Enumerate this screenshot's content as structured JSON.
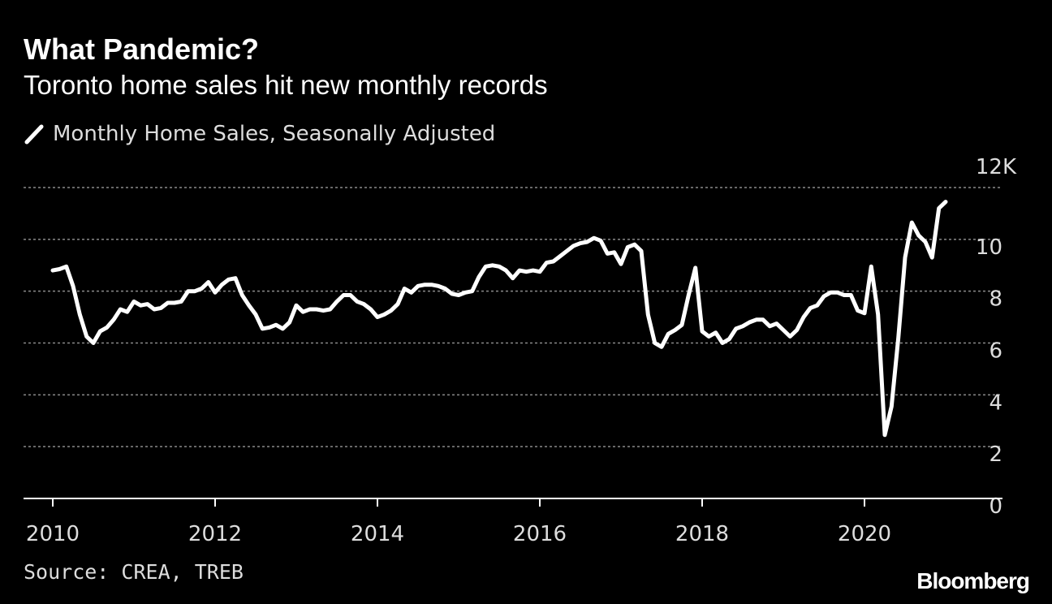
{
  "header": {
    "title": "What Pandemic?",
    "subtitle": "Toronto home sales hit new monthly records"
  },
  "legend": {
    "label": "Monthly Home Sales, Seasonally Adjusted",
    "icon": "line-swatch-icon",
    "placement": "top-left"
  },
  "footer": {
    "source": "Source: CREA, TREB",
    "logo": "Bloomberg"
  },
  "colors": {
    "background": "#000000",
    "line": "#ffffff",
    "grid": "#8a8a8a",
    "text": "#dddddd"
  },
  "chart_data": {
    "type": "line",
    "title": "What Pandemic?",
    "subtitle": "Toronto home sales hit new monthly records",
    "xlabel": "",
    "ylabel": "",
    "grid": true,
    "legend_placement": "top-left",
    "xlim": [
      2009.75,
      2021.4
    ],
    "ylim": [
      0,
      12
    ],
    "y_ticks": [
      0,
      2,
      4,
      6,
      8,
      10,
      12
    ],
    "y_tick_labels": [
      "0",
      "2",
      "4",
      "6",
      "8",
      "10",
      "12K"
    ],
    "x_ticks": [
      2010,
      2012,
      2014,
      2016,
      2018,
      2020
    ],
    "x_tick_labels": [
      "2010",
      "2012",
      "2014",
      "2016",
      "2018",
      "2020"
    ],
    "series": [
      {
        "name": "Monthly Home Sales, Seasonally Adjusted",
        "x": [
          2010.0,
          2010.083,
          2010.167,
          2010.25,
          2010.333,
          2010.417,
          2010.5,
          2010.583,
          2010.667,
          2010.75,
          2010.833,
          2010.917,
          2011.0,
          2011.083,
          2011.167,
          2011.25,
          2011.333,
          2011.417,
          2011.5,
          2011.583,
          2011.667,
          2011.75,
          2011.833,
          2011.917,
          2012.0,
          2012.083,
          2012.167,
          2012.25,
          2012.333,
          2012.417,
          2012.5,
          2012.583,
          2012.667,
          2012.75,
          2012.833,
          2012.917,
          2013.0,
          2013.083,
          2013.167,
          2013.25,
          2013.333,
          2013.417,
          2013.5,
          2013.583,
          2013.667,
          2013.75,
          2013.833,
          2013.917,
          2014.0,
          2014.083,
          2014.167,
          2014.25,
          2014.333,
          2014.417,
          2014.5,
          2014.583,
          2014.667,
          2014.75,
          2014.833,
          2014.917,
          2015.0,
          2015.083,
          2015.167,
          2015.25,
          2015.333,
          2015.417,
          2015.5,
          2015.583,
          2015.667,
          2015.75,
          2015.833,
          2015.917,
          2016.0,
          2016.083,
          2016.167,
          2016.25,
          2016.333,
          2016.417,
          2016.5,
          2016.583,
          2016.667,
          2016.75,
          2016.833,
          2016.917,
          2017.0,
          2017.083,
          2017.167,
          2017.25,
          2017.333,
          2017.417,
          2017.5,
          2017.583,
          2017.667,
          2017.75,
          2017.833,
          2017.917,
          2018.0,
          2018.083,
          2018.167,
          2018.25,
          2018.333,
          2018.417,
          2018.5,
          2018.583,
          2018.667,
          2018.75,
          2018.833,
          2018.917,
          2019.0,
          2019.083,
          2019.167,
          2019.25,
          2019.333,
          2019.417,
          2019.5,
          2019.583,
          2019.667,
          2019.75,
          2019.833,
          2019.917,
          2020.0,
          2020.083,
          2020.167,
          2020.25,
          2020.333,
          2020.417,
          2020.5,
          2020.583,
          2020.667,
          2020.75,
          2020.833,
          2020.917,
          2021.0
        ],
        "values": [
          8.8,
          8.85,
          8.95,
          8.2,
          7.1,
          6.25,
          6.0,
          6.45,
          6.6,
          6.9,
          7.3,
          7.2,
          7.6,
          7.45,
          7.5,
          7.3,
          7.35,
          7.55,
          7.55,
          7.6,
          8.0,
          8.0,
          8.1,
          8.35,
          7.95,
          8.25,
          8.45,
          8.5,
          7.85,
          7.45,
          7.1,
          6.55,
          6.6,
          6.7,
          6.55,
          6.8,
          7.45,
          7.2,
          7.3,
          7.3,
          7.25,
          7.3,
          7.6,
          7.85,
          7.85,
          7.6,
          7.5,
          7.3,
          7.0,
          7.1,
          7.25,
          7.5,
          8.1,
          7.95,
          8.2,
          8.25,
          8.25,
          8.2,
          8.1,
          7.9,
          7.85,
          7.95,
          8.0,
          8.55,
          8.95,
          9.0,
          8.95,
          8.8,
          8.5,
          8.8,
          8.75,
          8.8,
          8.75,
          9.1,
          9.15,
          9.35,
          9.55,
          9.75,
          9.85,
          9.9,
          10.05,
          9.95,
          9.45,
          9.5,
          9.05,
          9.7,
          9.8,
          9.55,
          7.1,
          6.0,
          5.85,
          6.35,
          6.5,
          6.7,
          7.85,
          8.9,
          6.45,
          6.25,
          6.4,
          6.0,
          6.15,
          6.55,
          6.65,
          6.8,
          6.9,
          6.9,
          6.65,
          6.75,
          6.5,
          6.25,
          6.5,
          7.0,
          7.35,
          7.45,
          7.8,
          7.95,
          7.95,
          7.85,
          7.85,
          7.25,
          7.15,
          8.95,
          7.1,
          2.45,
          3.55,
          6.2,
          9.3,
          10.65,
          10.15,
          9.9,
          9.3,
          11.2,
          11.45
        ]
      }
    ]
  }
}
